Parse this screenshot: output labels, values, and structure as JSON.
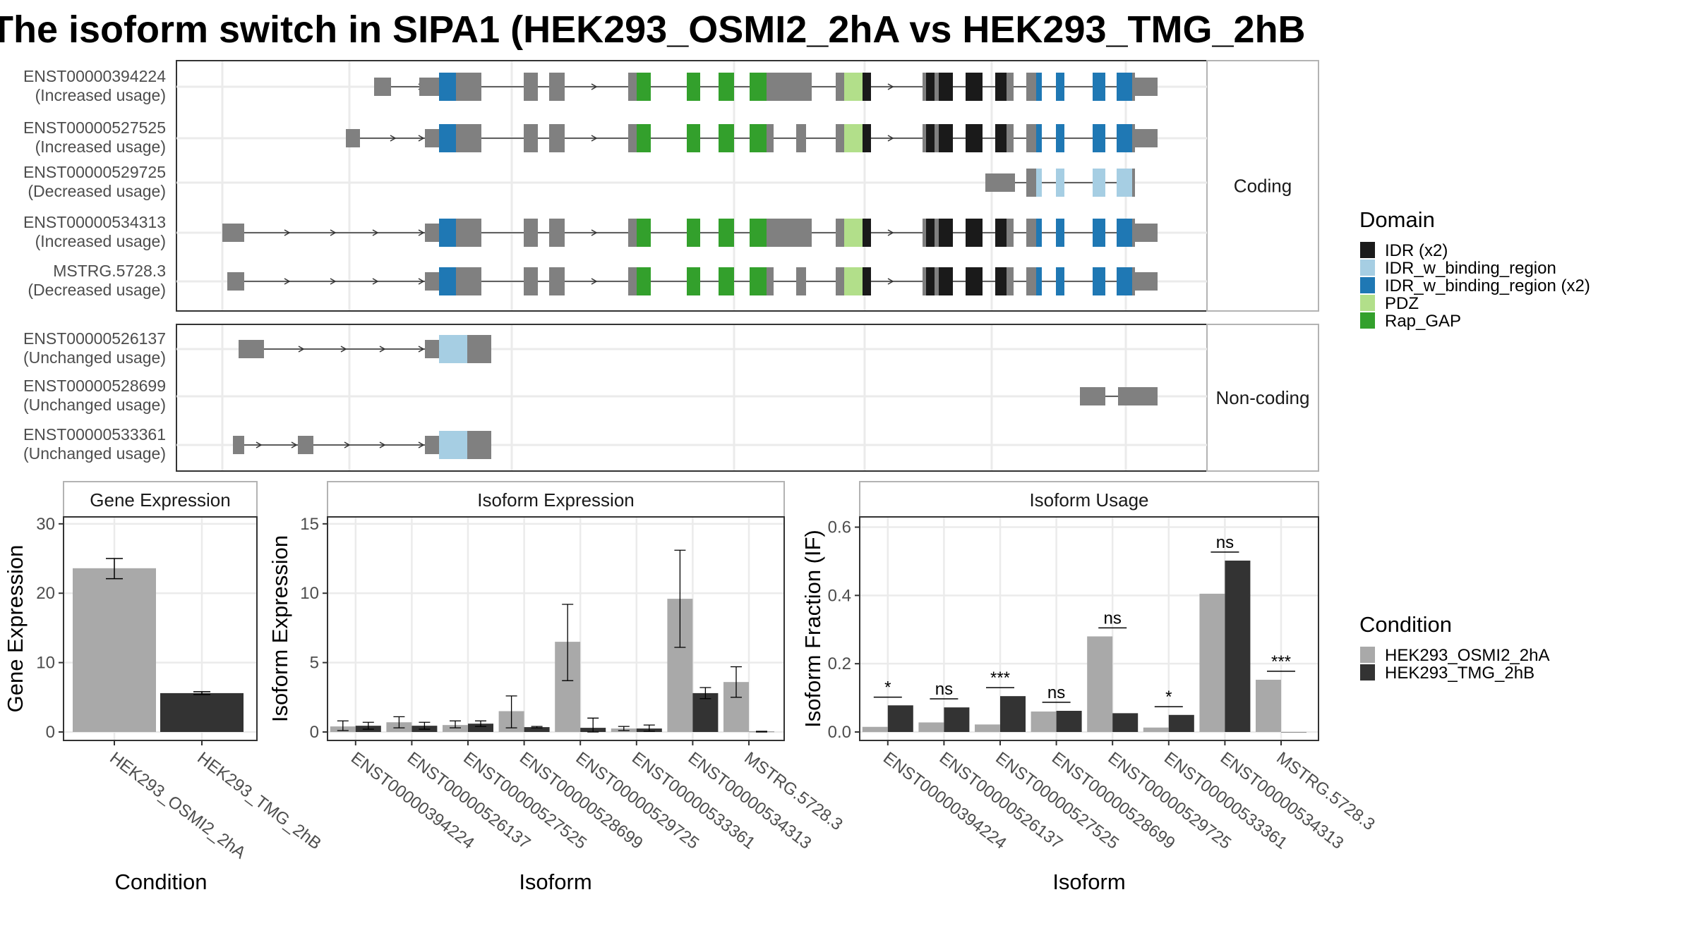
{
  "title": "The isoform switch in SIPA1 (HEK293_OSMI2_2hA vs HEK293_TMG_2hB",
  "colors": {
    "exon": "#808080",
    "IDR (x2)": "#1a1a1a",
    "IDR_w_binding_region": "#a6cee3",
    "IDR_w_binding_region (x2)": "#1f78b4",
    "PDZ": "#b2df8a",
    "Rap_GAP": "#33a02c",
    "cond_a": "#a9a9a9",
    "cond_b": "#333333"
  },
  "structure": {
    "facets": [
      "Coding",
      "Non-coding"
    ],
    "coding": [
      {
        "id": "ENST00000394224",
        "status": "(Increased usage)"
      },
      {
        "id": "ENST00000527525",
        "status": "(Increased usage)"
      },
      {
        "id": "ENST00000529725",
        "status": "(Decreased usage)"
      },
      {
        "id": "ENST00000534313",
        "status": "(Increased usage)"
      },
      {
        "id": "MSTRG.5728.3",
        "status": "(Decreased usage)"
      }
    ],
    "noncoding": [
      {
        "id": "ENST00000526137",
        "status": "(Unchanged usage)"
      },
      {
        "id": "ENST00000528699",
        "status": "(Unchanged usage)"
      },
      {
        "id": "ENST00000533361",
        "status": "(Unchanged usage)"
      }
    ]
  },
  "legend_domain": {
    "title": "Domain",
    "items": [
      {
        "label": "IDR (x2)",
        "color": "#1a1a1a"
      },
      {
        "label": "IDR_w_binding_region",
        "color": "#a6cee3"
      },
      {
        "label": "IDR_w_binding_region (x2)",
        "color": "#1f78b4"
      },
      {
        "label": "PDZ",
        "color": "#b2df8a"
      },
      {
        "label": "Rap_GAP",
        "color": "#33a02c"
      }
    ]
  },
  "legend_condition": {
    "title": "Condition",
    "items": [
      {
        "label": "HEK293_OSMI2_2hA",
        "color": "#a9a9a9"
      },
      {
        "label": "HEK293_TMG_2hB",
        "color": "#333333"
      }
    ]
  },
  "chart_data": [
    {
      "type": "bar",
      "strip": "Gene Expression",
      "xlabel": "Condition",
      "ylabel": "Gene Expression",
      "ylim": [
        0,
        31
      ],
      "yticks": [
        0,
        10,
        20,
        30
      ],
      "categories": [
        "HEK293_OSMI2_2hA",
        "HEK293_TMG_2hB"
      ],
      "values": [
        23.6,
        5.6
      ],
      "err_low": [
        22.1,
        5.4
      ],
      "err_high": [
        25.0,
        5.8
      ]
    },
    {
      "type": "bar",
      "strip": "Isoform Expression",
      "xlabel": "Isoform",
      "ylabel": "Isoform Expression",
      "ylim": [
        0,
        15.5
      ],
      "yticks": [
        0,
        5,
        10,
        15
      ],
      "categories": [
        "ENST00000394224",
        "ENST00000526137",
        "ENST00000527525",
        "ENST00000528699",
        "ENST00000529725",
        "ENST00000533361",
        "ENST00000534313",
        "MSTRG.5728.3"
      ],
      "series": [
        {
          "name": "HEK293_OSMI2_2hA",
          "values": [
            0.4,
            0.7,
            0.5,
            1.5,
            6.5,
            0.25,
            9.6,
            3.6
          ],
          "err_low": [
            0.1,
            0.3,
            0.3,
            0.3,
            3.7,
            0.1,
            6.1,
            2.5
          ],
          "err_high": [
            0.8,
            1.1,
            0.8,
            2.6,
            9.2,
            0.4,
            13.1,
            4.7
          ]
        },
        {
          "name": "HEK293_TMG_2hB",
          "values": [
            0.45,
            0.45,
            0.6,
            0.35,
            0.3,
            0.25,
            2.8,
            0.02
          ],
          "err_low": [
            0.2,
            0.2,
            0.4,
            0.3,
            0.0,
            0.05,
            2.4,
            0.0
          ],
          "err_high": [
            0.7,
            0.7,
            0.8,
            0.4,
            1.0,
            0.5,
            3.2,
            0.05
          ]
        }
      ]
    },
    {
      "type": "bar",
      "strip": "Isoform Usage",
      "xlabel": "Isoform",
      "ylabel": "Isoform Fraction (IF)",
      "ylim": [
        0,
        0.63
      ],
      "yticks": [
        0.0,
        0.2,
        0.4,
        0.6
      ],
      "ytick_labels": [
        "0.0",
        "0.2",
        "0.4",
        "0.6"
      ],
      "categories": [
        "ENST00000394224",
        "ENST00000526137",
        "ENST00000527525",
        "ENST00000528699",
        "ENST00000529725",
        "ENST00000533361",
        "ENST00000534313",
        "MSTRG.5728.3"
      ],
      "series": [
        {
          "name": "HEK293_OSMI2_2hA",
          "values": [
            0.015,
            0.028,
            0.022,
            0.06,
            0.28,
            0.013,
            0.405,
            0.153
          ]
        },
        {
          "name": "HEK293_TMG_2hB",
          "values": [
            0.078,
            0.072,
            0.105,
            0.062,
            0.055,
            0.05,
            0.502,
            0.0
          ]
        }
      ],
      "significance": [
        {
          "label": "*",
          "level": 0.102
        },
        {
          "label": "ns",
          "level": 0.097
        },
        {
          "label": "***",
          "level": 0.13
        },
        {
          "label": "ns",
          "level": 0.087
        },
        {
          "label": "ns",
          "level": 0.305
        },
        {
          "label": "*",
          "level": 0.074
        },
        {
          "label": "ns",
          "level": 0.527
        },
        {
          "label": "***",
          "level": 0.178
        }
      ]
    }
  ]
}
